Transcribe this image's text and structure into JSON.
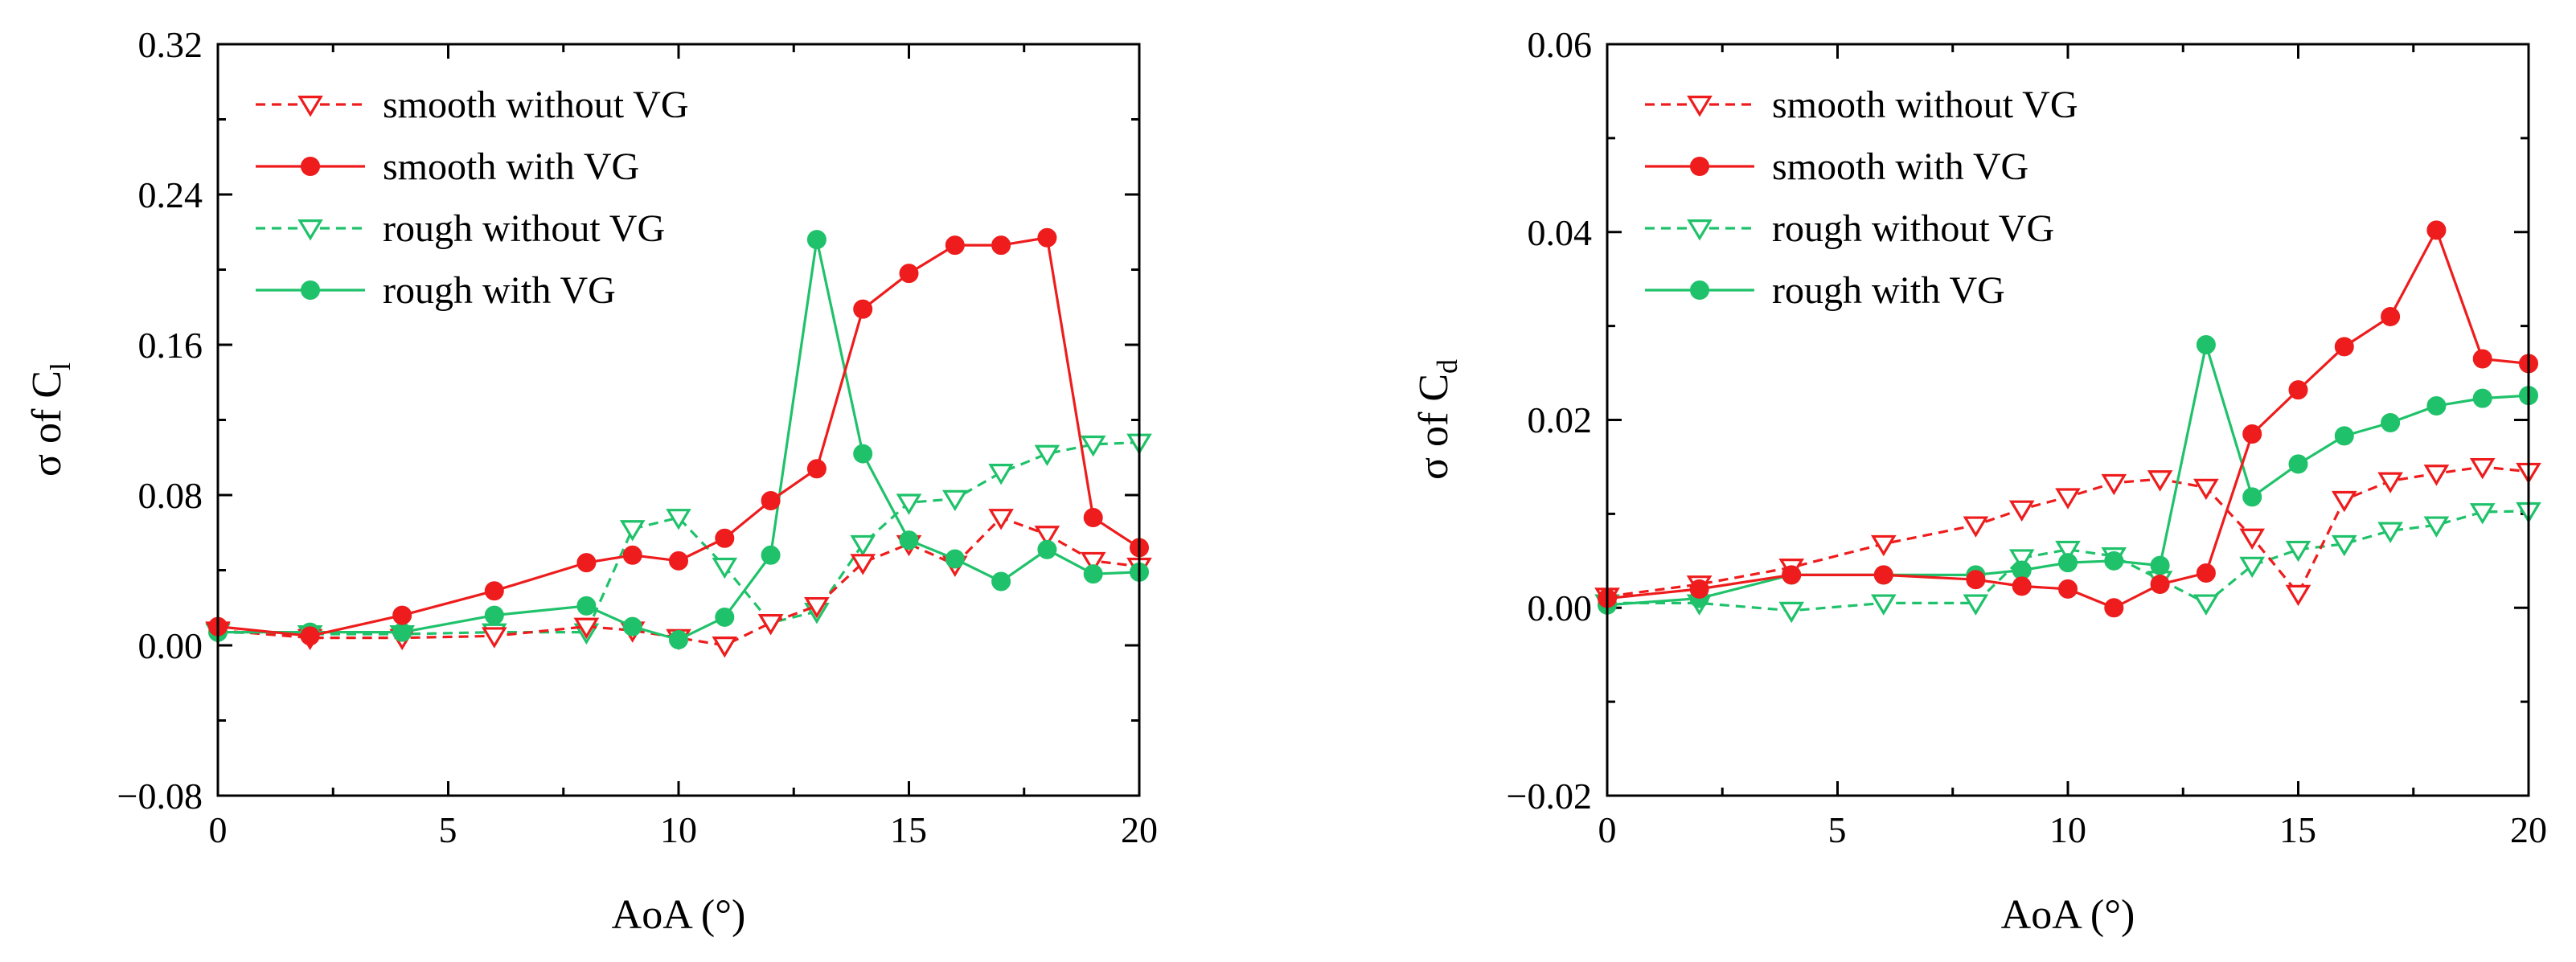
{
  "colors": {
    "smooth": "#ee1c1c",
    "rough": "#1fc26a",
    "axis": "#000000"
  },
  "chart_data": [
    {
      "type": "line",
      "id": "cl",
      "xlabel": "AoA (°)",
      "ylabel_main": "σ of C",
      "ylabel_sub": "l",
      "xlim": [
        0,
        20
      ],
      "ylim": [
        -0.08,
        0.32
      ],
      "xticks": [
        0,
        5,
        10,
        15,
        20
      ],
      "xtick_labels": [
        "0",
        "5",
        "10",
        "15",
        "20"
      ],
      "yticks": [
        -0.08,
        0,
        0.08,
        0.16,
        0.24,
        0.32
      ],
      "ytick_labels": [
        "−0.08",
        "0.00",
        "0.08",
        "0.16",
        "0.24",
        "0.32"
      ],
      "legend_position": "top-left",
      "series": [
        {
          "name": "smooth without VG",
          "color_key": "smooth",
          "dashed": true,
          "marker": "triangle-down-open",
          "x": [
            0,
            2,
            4,
            6,
            8,
            9,
            10,
            11,
            12,
            13,
            14,
            15,
            16,
            17,
            18,
            19,
            20
          ],
          "y": [
            0.008,
            0.004,
            0.004,
            0.005,
            0.01,
            0.008,
            0.004,
            0.0,
            0.012,
            0.021,
            0.044,
            0.054,
            0.043,
            0.068,
            0.059,
            0.045,
            0.042
          ]
        },
        {
          "name": "smooth with VG",
          "color_key": "smooth",
          "dashed": false,
          "marker": "circle-filled",
          "x": [
            0,
            2,
            4,
            6,
            8,
            9,
            10,
            11,
            12,
            13,
            14,
            15,
            16,
            17,
            18,
            19,
            20
          ],
          "y": [
            0.01,
            0.005,
            0.016,
            0.029,
            0.044,
            0.048,
            0.045,
            0.057,
            0.077,
            0.094,
            0.179,
            0.198,
            0.213,
            0.213,
            0.217,
            0.068,
            0.052
          ]
        },
        {
          "name": "rough without VG",
          "color_key": "rough",
          "dashed": true,
          "marker": "triangle-down-open",
          "x": [
            0,
            2,
            4,
            6,
            8,
            9,
            10,
            11,
            12,
            13,
            14,
            15,
            16,
            17,
            18,
            19,
            20
          ],
          "y": [
            0.007,
            0.006,
            0.006,
            0.007,
            0.007,
            0.062,
            0.068,
            0.042,
            0.012,
            0.018,
            0.054,
            0.076,
            0.078,
            0.092,
            0.102,
            0.107,
            0.108
          ]
        },
        {
          "name": "rough with VG",
          "color_key": "rough",
          "dashed": false,
          "marker": "circle-filled",
          "x": [
            0,
            2,
            4,
            6,
            8,
            9,
            10,
            11,
            12,
            13,
            14,
            15,
            16,
            17,
            18,
            19,
            20
          ],
          "y": [
            0.007,
            0.007,
            0.007,
            0.016,
            0.021,
            0.01,
            0.003,
            0.015,
            0.048,
            0.216,
            0.102,
            0.056,
            0.046,
            0.034,
            0.051,
            0.038,
            0.039
          ]
        }
      ]
    },
    {
      "type": "line",
      "id": "cd",
      "xlabel": "AoA (°)",
      "ylabel_main": "σ of C",
      "ylabel_sub": "d",
      "xlim": [
        0,
        20
      ],
      "ylim": [
        -0.02,
        0.06
      ],
      "xticks": [
        0,
        5,
        10,
        15,
        20
      ],
      "xtick_labels": [
        "0",
        "5",
        "10",
        "15",
        "20"
      ],
      "yticks": [
        -0.02,
        0,
        0.02,
        0.04,
        0.06
      ],
      "ytick_labels": [
        "−0.02",
        "0.00",
        "0.02",
        "0.04",
        "0.06"
      ],
      "legend_position": "top-left",
      "series": [
        {
          "name": "smooth without VG",
          "color_key": "smooth",
          "dashed": true,
          "marker": "triangle-down-open",
          "x": [
            0,
            2,
            4,
            6,
            8,
            9,
            10,
            11,
            12,
            13,
            14,
            15,
            16,
            17,
            18,
            19,
            20
          ],
          "y": [
            0.0012,
            0.0025,
            0.0043,
            0.0068,
            0.0088,
            0.0105,
            0.0118,
            0.0133,
            0.0137,
            0.0128,
            0.0075,
            0.0015,
            0.0115,
            0.0135,
            0.0143,
            0.015,
            0.0145
          ]
        },
        {
          "name": "smooth with VG",
          "color_key": "smooth",
          "dashed": false,
          "marker": "circle-filled",
          "x": [
            0,
            2,
            4,
            6,
            8,
            9,
            10,
            11,
            12,
            13,
            14,
            15,
            16,
            17,
            18,
            19,
            20
          ],
          "y": [
            0.001,
            0.002,
            0.0035,
            0.0035,
            0.003,
            0.0023,
            0.002,
            0.0,
            0.0025,
            0.0037,
            0.0185,
            0.0232,
            0.0278,
            0.031,
            0.0402,
            0.0265,
            0.026
          ]
        },
        {
          "name": "rough without VG",
          "color_key": "rough",
          "dashed": true,
          "marker": "triangle-down-open",
          "x": [
            0,
            2,
            4,
            6,
            8,
            9,
            10,
            11,
            12,
            13,
            14,
            15,
            16,
            17,
            18,
            19,
            20
          ],
          "y": [
            0.0005,
            0.0005,
            -0.0003,
            0.0005,
            0.0005,
            0.0053,
            0.0062,
            0.0055,
            0.003,
            0.0005,
            0.0045,
            0.0062,
            0.0068,
            0.0082,
            0.0088,
            0.0102,
            0.0103
          ]
        },
        {
          "name": "rough with VG",
          "color_key": "rough",
          "dashed": false,
          "marker": "circle-filled",
          "x": [
            0,
            2,
            4,
            6,
            8,
            9,
            10,
            11,
            12,
            13,
            14,
            15,
            16,
            17,
            18,
            19,
            20
          ],
          "y": [
            0.0003,
            0.001,
            0.0035,
            0.0035,
            0.0035,
            0.004,
            0.0048,
            0.005,
            0.0045,
            0.028,
            0.0118,
            0.0153,
            0.0183,
            0.0197,
            0.0215,
            0.0223,
            0.0226
          ]
        }
      ]
    }
  ]
}
